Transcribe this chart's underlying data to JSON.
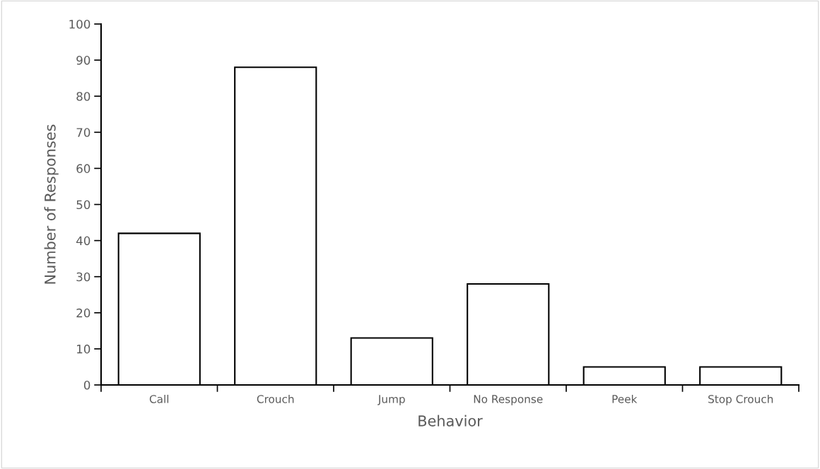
{
  "chart_data": {
    "type": "bar",
    "xlabel": "Behavior",
    "ylabel": "Number of Responses",
    "categories": [
      "Call",
      "Crouch",
      "Jump",
      "No Response",
      "Peek",
      "Stop Crouch"
    ],
    "values": [
      42,
      88,
      13,
      28,
      5,
      5
    ],
    "color": "#ffffff",
    "ylim": [
      0,
      100
    ],
    "yticks": [
      0,
      10,
      20,
      30,
      40,
      50,
      60,
      70,
      80,
      90,
      100
    ],
    "grid": false,
    "legend": false
  }
}
